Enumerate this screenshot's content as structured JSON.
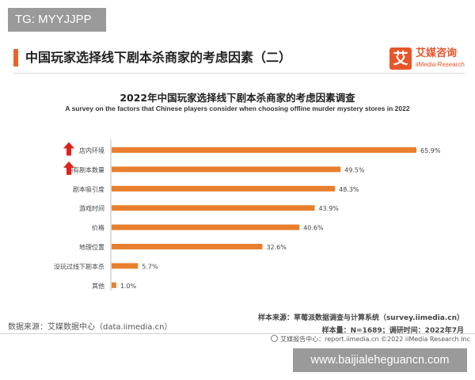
{
  "tag": "TG: MYYJJPP",
  "header": {
    "title": "中国玩家选择线下剧本杀商家的考虑因素（二）",
    "logo_char": "艾",
    "logo_cn": "艾媒咨询",
    "logo_en": "iiMedia Research"
  },
  "colors": {
    "accent": "#e8642b",
    "bar": "#e87f2e",
    "arrow": "#e0201b"
  },
  "chart_data": {
    "type": "bar",
    "orientation": "horizontal",
    "title": "2022年中国玩家选择线下剧本杀商家的考虑因素调查",
    "subtitle": "A survey on the factors that Chinese players consider when choosing offline murder mystery stores in 2022",
    "categories": [
      "店内环境",
      "拥有剧本数量",
      "剧本吸引度",
      "游戏时间",
      "价格",
      "地理位置",
      "没玩过线下剧本杀",
      "其他"
    ],
    "values": [
      65.9,
      49.5,
      48.3,
      43.9,
      40.6,
      32.6,
      5.7,
      1.0
    ],
    "value_labels": [
      "65.9%",
      "49.5%",
      "48.3%",
      "43.9%",
      "40.6%",
      "32.6%",
      "5.7%",
      "1.0%"
    ],
    "highlighted": [
      "店内环境",
      "拥有剧本数量"
    ],
    "xlim": [
      0,
      65.9
    ],
    "grid": false,
    "legend": "none"
  },
  "source": {
    "left": "数据来源：艾媒数据中心（data.iimedia.cn）",
    "right_line1": "样本来源：草莓派数据调查与计算系统（survey.iimedia.cn）",
    "right_line2": "样本量：N=1689；调研时间：2022年7月",
    "footer": "艾媒报告中心：report.iimedia.cn  ©2022  iiMedia Research  Inc"
  },
  "watermark": "www.baijialeheguancn.com"
}
